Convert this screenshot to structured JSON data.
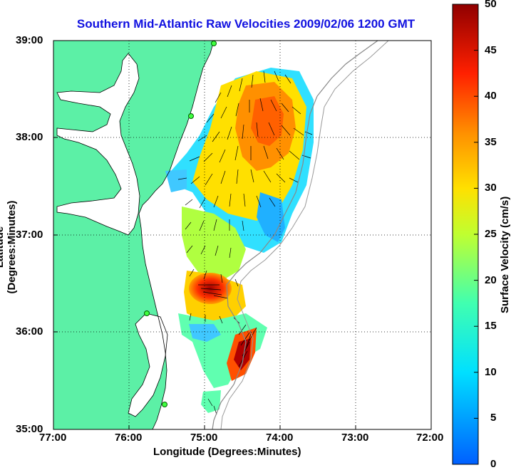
{
  "title": "Southern Mid-Atlantic Raw Velocities 2009/02/06 1200 GMT",
  "axes": {
    "xlabel": "Longitude (Degrees:Minutes)",
    "ylabel": "Latitude (Degrees:Minutes)",
    "x_ticks": [
      "77:00",
      "76:00",
      "75:00",
      "74:00",
      "73:00",
      "72:00"
    ],
    "y_ticks": [
      "39:00",
      "38:00",
      "37:00",
      "36:00",
      "35:00"
    ]
  },
  "colorbar": {
    "label": "Surface Velocity (cm/s)",
    "ticks": [
      "50",
      "45",
      "40",
      "35",
      "30",
      "25",
      "20",
      "15",
      "10",
      "5",
      "0"
    ],
    "range": [
      0,
      50
    ]
  },
  "colors": {
    "land": "#5cf0a6",
    "title": "#1010e0",
    "grid": "#000000"
  },
  "map": {
    "lon_range": [
      -77,
      -72
    ],
    "lat_range": [
      35,
      39
    ]
  }
}
